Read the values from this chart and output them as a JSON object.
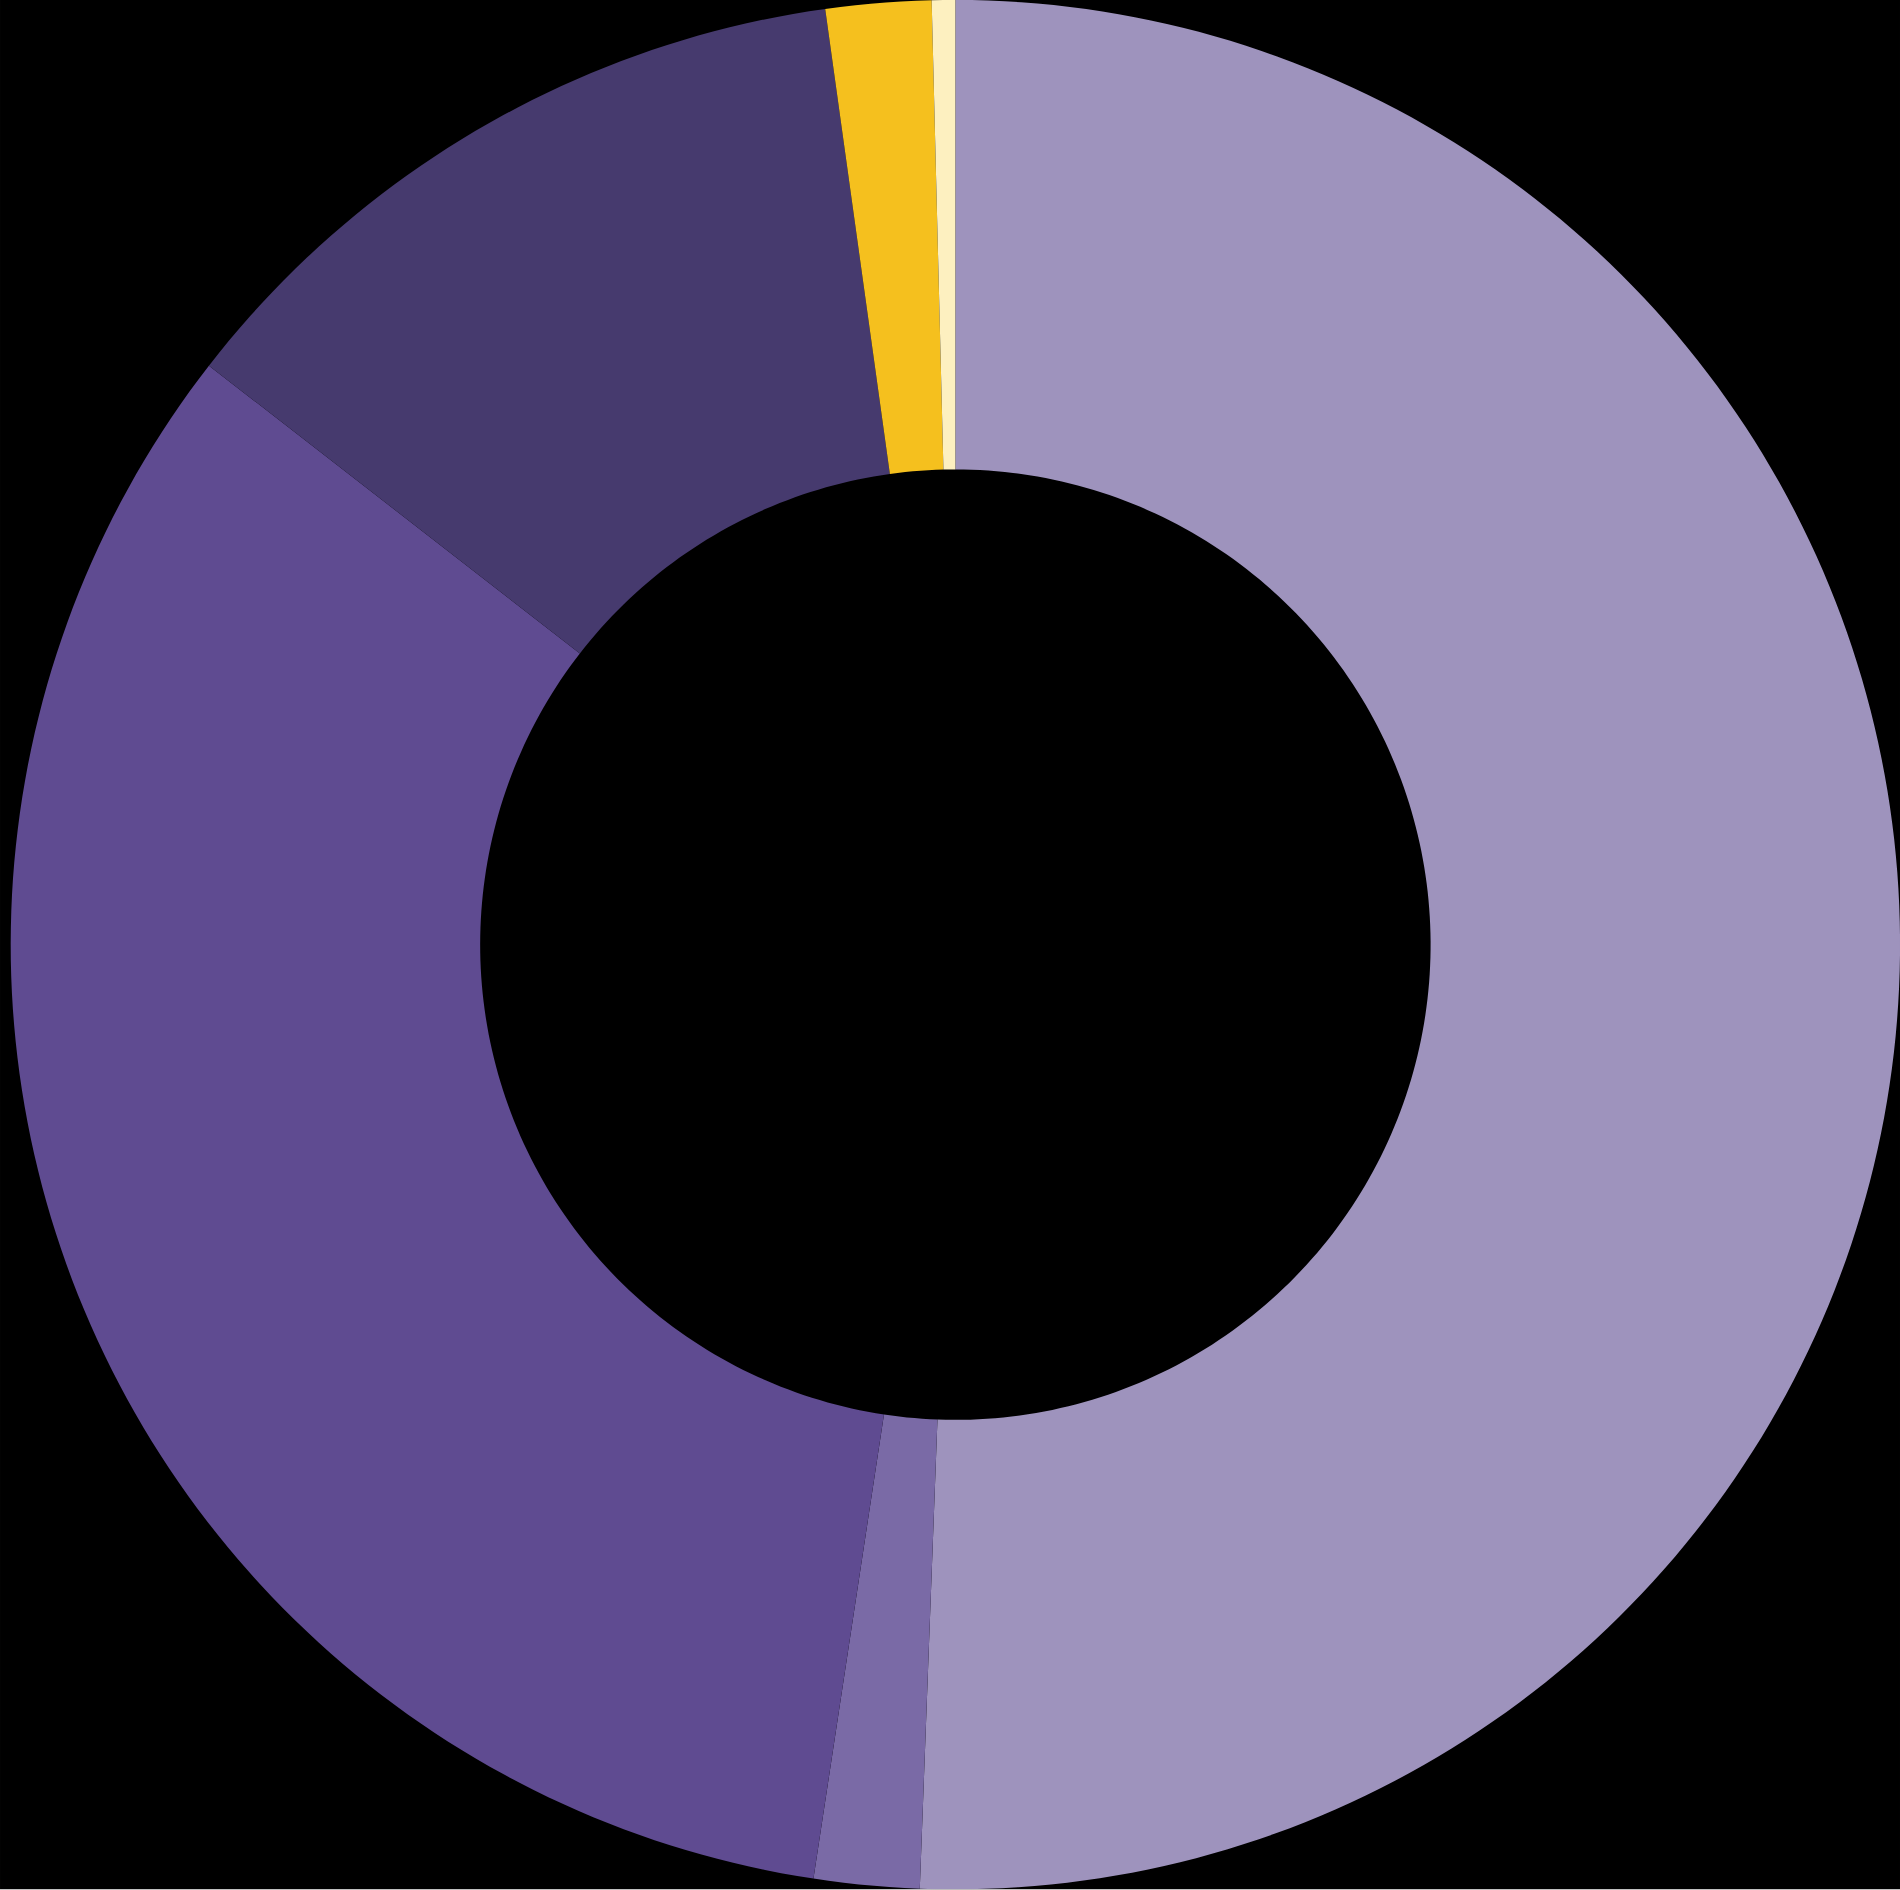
{
  "chart_data": {
    "type": "donut",
    "categories": [
      null,
      null,
      null,
      null,
      null,
      null
    ],
    "values": [
      50.6,
      1.8,
      33.1,
      12.3,
      1.8,
      0.4
    ],
    "colors": [
      "#9e93bd",
      "#7a6aa6",
      "#5f4b91",
      "#463a6e",
      "#f5c01e",
      "#fdf0c0"
    ]
  }
}
